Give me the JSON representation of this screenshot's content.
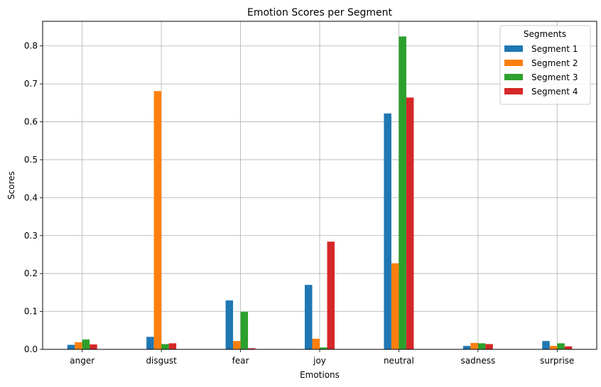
{
  "chart_data": {
    "type": "bar",
    "title": "Emotion Scores per Segment",
    "xlabel": "Emotions",
    "ylabel": "Scores",
    "categories": [
      "anger",
      "disgust",
      "fear",
      "joy",
      "neutral",
      "sadness",
      "surprise"
    ],
    "ylim": [
      0,
      0.865
    ],
    "yticks": [
      0.0,
      0.1,
      0.2,
      0.3,
      0.4,
      0.5,
      0.6,
      0.7,
      0.8
    ],
    "ytick_labels": [
      "0.0",
      "0.1",
      "0.2",
      "0.3",
      "0.4",
      "0.5",
      "0.6",
      "0.7",
      "0.8"
    ],
    "grid": true,
    "legend": {
      "title": "Segments",
      "position": "top-right"
    },
    "series": [
      {
        "name": "Segment 1",
        "color": "#1f77b4",
        "values": [
          0.012,
          0.033,
          0.129,
          0.17,
          0.622,
          0.009,
          0.022
        ]
      },
      {
        "name": "Segment 2",
        "color": "#ff7f0e",
        "values": [
          0.019,
          0.681,
          0.022,
          0.028,
          0.227,
          0.017,
          0.009
        ]
      },
      {
        "name": "Segment 3",
        "color": "#2ca02c",
        "values": [
          0.026,
          0.014,
          0.099,
          0.005,
          0.825,
          0.016,
          0.016
        ]
      },
      {
        "name": "Segment 4",
        "color": "#d62728",
        "values": [
          0.013,
          0.016,
          0.003,
          0.284,
          0.664,
          0.014,
          0.008
        ]
      }
    ]
  }
}
